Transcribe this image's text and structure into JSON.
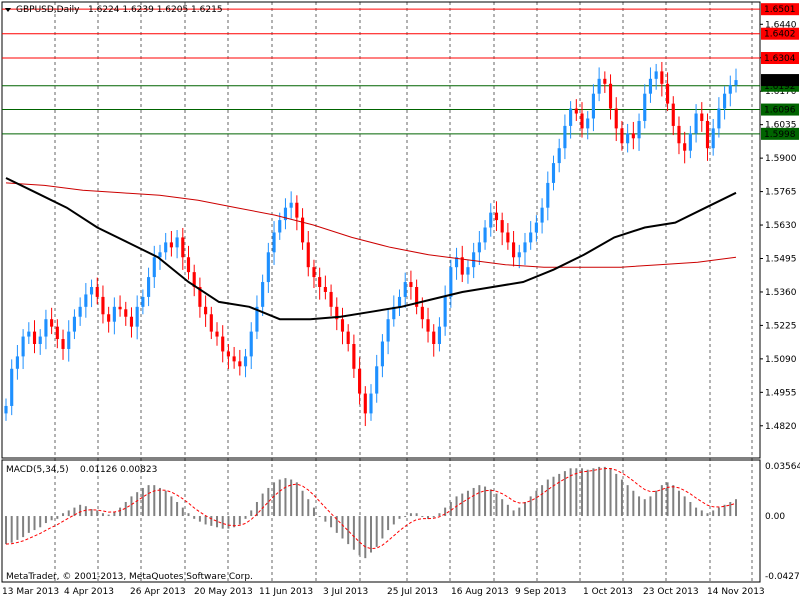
{
  "header": {
    "symbol_label": "GBPUSD,Daily",
    "ohlc_label": "1.6224 1.6239 1.6205 1.6215"
  },
  "macd": {
    "label": "MACD(5,34,5)",
    "values_label": "0.01126 0.00823",
    "y_ticks": [
      "0.03564",
      "0.00",
      "-0.04272"
    ]
  },
  "copyright": "MetaTrader, © 2001-2013, MetaQuotes Software Corp.",
  "chart_data": {
    "type": "candlestick",
    "price_ticks": [
      "1.6440",
      "1.6305",
      "1.6170",
      "1.6035",
      "1.5900",
      "1.5765",
      "1.5630",
      "1.5495",
      "1.5360",
      "1.5225",
      "1.5090",
      "1.4955",
      "1.4820",
      "1.4690"
    ],
    "x_tick_labels": [
      "13 Mar 2013",
      "4 Apr 2013",
      "26 Apr 2013",
      "20 May 2013",
      "11 Jun 2013",
      "3 Jul 2013",
      "25 Jul 2013",
      "16 Aug 2013",
      "9 Sep 2013",
      "1 Oct 2013",
      "23 Oct 2013",
      "14 Nov 2013"
    ],
    "current_price_label": "1.6215",
    "horizontal_levels": [
      {
        "label": "1.6501",
        "color": "#ff0000",
        "box": "#ff0000"
      },
      {
        "label": "1.6402",
        "color": "#ff0000",
        "box": "#ff0000"
      },
      {
        "label": "1.6304",
        "color": "#ff0000",
        "box": "#ff0000"
      },
      {
        "label": "1.6192",
        "color": "#006400",
        "box": "#006400"
      },
      {
        "label": "1.6096",
        "color": "#006400",
        "box": "#006400"
      },
      {
        "label": "1.5998",
        "color": "#006400",
        "box": "#006400"
      }
    ],
    "ylim": [
      1.469,
      1.653
    ],
    "colors": {
      "up": "#1e90ff",
      "down": "#ff0000",
      "ma_slow": "#000000",
      "ma_fast": "#cc0000",
      "macd_hist": "#808080",
      "macd_signal": "#ff0000"
    },
    "close_path": [
      1.49,
      1.505,
      1.51,
      1.518,
      1.52,
      1.515,
      1.518,
      1.525,
      1.522,
      1.517,
      1.513,
      1.52,
      1.526,
      1.53,
      1.535,
      1.538,
      1.534,
      1.527,
      1.524,
      1.53,
      1.529,
      1.526,
      1.522,
      1.53,
      1.534,
      1.542,
      1.55,
      1.552,
      1.556,
      1.554,
      1.558,
      1.55,
      1.544,
      1.538,
      1.53,
      1.527,
      1.52,
      1.518,
      1.512,
      1.51,
      1.508,
      1.506,
      1.51,
      1.52,
      1.53,
      1.54,
      1.552,
      1.56,
      1.565,
      1.57,
      1.572,
      1.566,
      1.556,
      1.546,
      1.542,
      1.538,
      1.536,
      1.53,
      1.525,
      1.52,
      1.515,
      1.505,
      1.495,
      1.487,
      1.495,
      1.506,
      1.516,
      1.525,
      1.53,
      1.534,
      1.54,
      1.538,
      1.53,
      1.525,
      1.52,
      1.515,
      1.522,
      1.534,
      1.546,
      1.55,
      1.543,
      1.546,
      1.552,
      1.556,
      1.562,
      1.568,
      1.565,
      1.56,
      1.556,
      1.55,
      1.552,
      1.556,
      1.56,
      1.564,
      1.57,
      1.58,
      1.588,
      1.594,
      1.603,
      1.61,
      1.608,
      1.602,
      1.606,
      1.616,
      1.622,
      1.62,
      1.61,
      1.602,
      1.596,
      1.6,
      1.598,
      1.605,
      1.616,
      1.622,
      1.625,
      1.62,
      1.612,
      1.603,
      1.596,
      1.593,
      1.6,
      1.608,
      1.605,
      1.594,
      1.602,
      1.61,
      1.616,
      1.6195,
      1.6215
    ],
    "ma_slow_path": [
      1.582,
      1.576,
      1.57,
      1.562,
      1.556,
      1.55,
      1.54,
      1.532,
      1.53,
      1.525,
      1.525,
      1.526,
      1.528,
      1.53,
      1.533,
      1.536,
      1.538,
      1.54,
      1.545,
      1.551,
      1.558,
      1.562,
      1.564,
      1.57,
      1.576
    ],
    "ma_fast_path": [
      1.58,
      1.579,
      1.577,
      1.576,
      1.575,
      1.573,
      1.57,
      1.567,
      1.563,
      1.558,
      1.554,
      1.551,
      1.549,
      1.547,
      1.546,
      1.546,
      1.546,
      1.547,
      1.548,
      1.55
    ],
    "macd_hist": [
      -0.02,
      -0.019,
      -0.017,
      -0.015,
      -0.012,
      -0.01,
      -0.008,
      -0.005,
      -0.003,
      -0.002,
      0.002,
      0.004,
      0.006,
      0.008,
      0.007,
      0.005,
      0.004,
      0.002,
      0.001,
      0.003,
      0.006,
      0.01,
      0.014,
      0.017,
      0.02,
      0.022,
      0.022,
      0.02,
      0.018,
      0.014,
      0.01,
      0.006,
      0.002,
      -0.002,
      -0.004,
      -0.006,
      -0.007,
      -0.008,
      -0.009,
      -0.009,
      -0.008,
      -0.006,
      -0.002,
      0.004,
      0.01,
      0.016,
      0.02,
      0.024,
      0.026,
      0.027,
      0.026,
      0.024,
      0.018,
      0.012,
      0.006,
      0.0,
      -0.004,
      -0.008,
      -0.012,
      -0.016,
      -0.02,
      -0.024,
      -0.028,
      -0.03,
      -0.026,
      -0.022,
      -0.016,
      -0.01,
      -0.006,
      -0.002,
      0.0,
      0.002,
      0.002,
      0.0,
      -0.002,
      -0.001,
      0.002,
      0.006,
      0.01,
      0.014,
      0.016,
      0.018,
      0.02,
      0.022,
      0.021,
      0.019,
      0.016,
      0.012,
      0.008,
      0.004,
      0.006,
      0.01,
      0.014,
      0.018,
      0.022,
      0.026,
      0.028,
      0.03,
      0.032,
      0.034,
      0.034,
      0.034,
      0.033,
      0.034,
      0.035,
      0.035,
      0.034,
      0.03,
      0.026,
      0.022,
      0.018,
      0.014,
      0.012,
      0.014,
      0.018,
      0.022,
      0.024,
      0.022,
      0.018,
      0.014,
      0.01,
      0.006,
      0.004,
      0.002,
      0.004,
      0.006,
      0.008,
      0.01,
      0.012
    ]
  }
}
